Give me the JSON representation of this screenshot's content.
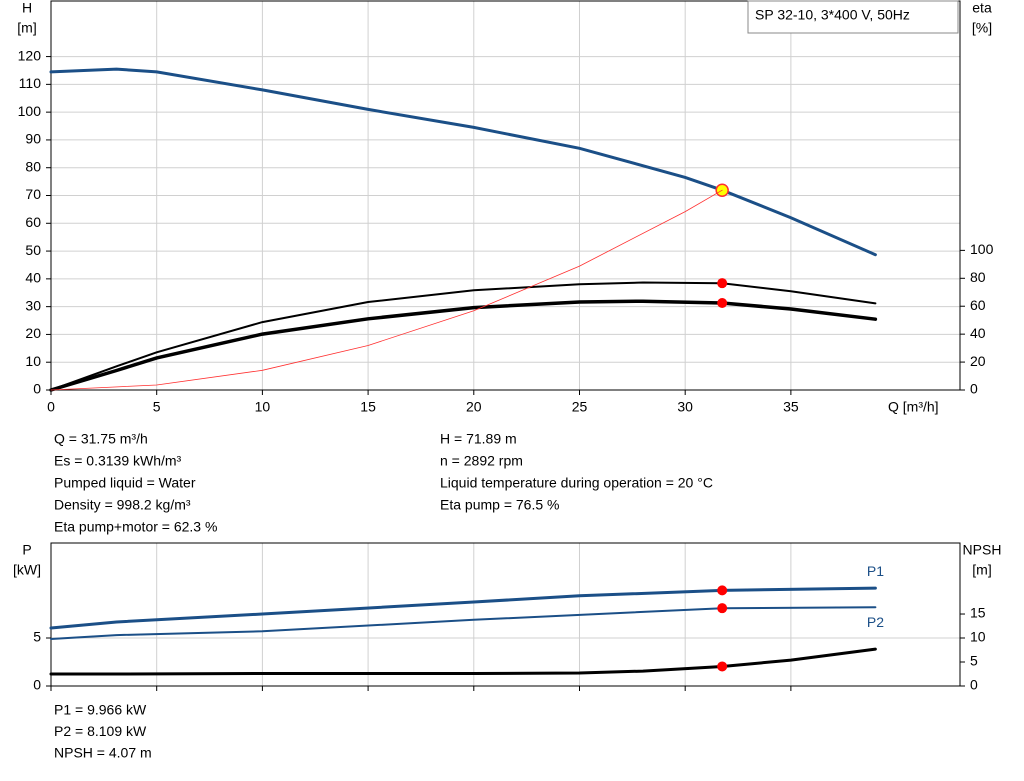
{
  "chart_data": [
    {
      "type": "line",
      "ylabel": "H",
      "yunit": "[m]",
      "y2label": "eta",
      "y2unit": "[%]",
      "xlabel": "Q [m³/h]",
      "legend_box": "SP 32-10, 3*400 V, 50Hz",
      "xlim": [
        0,
        43
      ],
      "xticks": [
        0,
        5,
        10,
        15,
        20,
        25,
        30,
        35
      ],
      "xtick_labels": true,
      "ylim": [
        0,
        140
      ],
      "yticks": [
        0,
        10,
        20,
        30,
        40,
        50,
        60,
        70,
        80,
        90,
        100,
        110,
        120
      ],
      "y2lim": [
        0,
        278.6
      ],
      "y2ticks": [
        0,
        20,
        40,
        60,
        80,
        100
      ],
      "grid": true,
      "series": [
        {
          "color": "#1b4f87",
          "width": 3,
          "x": [
            0,
            3.1,
            5,
            10,
            15,
            20,
            25,
            30,
            31.75,
            35,
            39
          ],
          "values": [
            114.5,
            115.5,
            114.5,
            108,
            101,
            94.5,
            87,
            76.5,
            71.89,
            62,
            48.7
          ],
          "marker": {
            "x": 31.75,
            "y": 71.89,
            "color": "#ffff00"
          }
        },
        {
          "color": "#000000",
          "width": 2,
          "axis": "y2",
          "x": [
            0,
            3.1,
            5,
            10,
            15,
            20,
            25,
            28,
            31.75,
            35,
            39
          ],
          "values": [
            0,
            17,
            27,
            48.6,
            63,
            71.4,
            75.7,
            77,
            76.5,
            70.7,
            62
          ],
          "marker": {
            "x": 31.75,
            "y": 76.5,
            "color": "#ff0000"
          }
        },
        {
          "color": "#000000",
          "width": 3.5,
          "axis": "y2",
          "x": [
            0,
            3.1,
            5,
            10,
            15,
            20,
            25,
            28,
            31.75,
            35,
            39
          ],
          "values": [
            0,
            14,
            23,
            40,
            51,
            59,
            63,
            63.6,
            62.3,
            58,
            50.7
          ],
          "marker": {
            "x": 31.75,
            "y": 62.3,
            "color": "#ff0000"
          }
        },
        {
          "color": "#ff3030",
          "width": 0.8,
          "x": [
            0,
            5,
            10,
            15,
            20,
            25,
            30,
            31.75
          ],
          "values": [
            0,
            1.8,
            7.1,
            16,
            28.5,
            44.6,
            64.2,
            71.89
          ]
        }
      ]
    },
    {
      "type": "line",
      "ylabel": "P",
      "yunit": "[kW]",
      "y2label": "NPSH",
      "y2unit": "[m]",
      "xlim": [
        0,
        43
      ],
      "xticks": [
        0,
        5,
        10,
        15,
        20,
        25,
        30,
        35
      ],
      "xtick_labels": false,
      "ylim": [
        0,
        14.9
      ],
      "yticks": [
        0,
        5
      ],
      "y2lim": [
        0,
        29.8
      ],
      "y2ticks": [
        0,
        5,
        10,
        15
      ],
      "grid": true,
      "series": [
        {
          "name": "P1",
          "label_side": "above",
          "color": "#1b4f87",
          "width": 3,
          "x": [
            0,
            3.1,
            10,
            20,
            25,
            31.75,
            39
          ],
          "values": [
            6.04,
            6.67,
            7.5,
            8.75,
            9.4,
            9.966,
            10.2
          ],
          "marker": {
            "x": 31.75,
            "y": 9.966,
            "color": "#ff0000"
          }
        },
        {
          "name": "P2",
          "label_side": "below",
          "color": "#1b4f87",
          "width": 2,
          "x": [
            0,
            3.1,
            10,
            20,
            31.75,
            39
          ],
          "values": [
            4.9,
            5.3,
            5.7,
            6.9,
            8.109,
            8.2
          ],
          "marker": {
            "x": 31.75,
            "y": 8.109,
            "color": "#ff0000"
          }
        },
        {
          "color": "#000000",
          "width": 3,
          "axis": "y2",
          "x": [
            0,
            3.1,
            10,
            20,
            25,
            28,
            31.75,
            35,
            39
          ],
          "values": [
            2.5,
            2.5,
            2.6,
            2.6,
            2.7,
            3.1,
            4.07,
            5.4,
            7.7
          ],
          "marker": {
            "x": 31.75,
            "y": 4.07,
            "color": "#ff0000"
          }
        }
      ]
    }
  ],
  "operating_info": {
    "left": [
      "Q = 31.75 m³/h",
      "Es = 0.3139 kWh/m³",
      "Pumped liquid = Water",
      "Density = 998.2 kg/m³",
      "Eta pump+motor = 62.3 %"
    ],
    "right": [
      "H = 71.89 m",
      "n = 2892 rpm",
      "Liquid temperature during operation = 20 °C",
      "Eta pump = 76.5 %"
    ]
  },
  "power_info": [
    "P1 = 9.966 kW",
    "P2 = 8.109 kW",
    "NPSH = 4.07 m"
  ]
}
